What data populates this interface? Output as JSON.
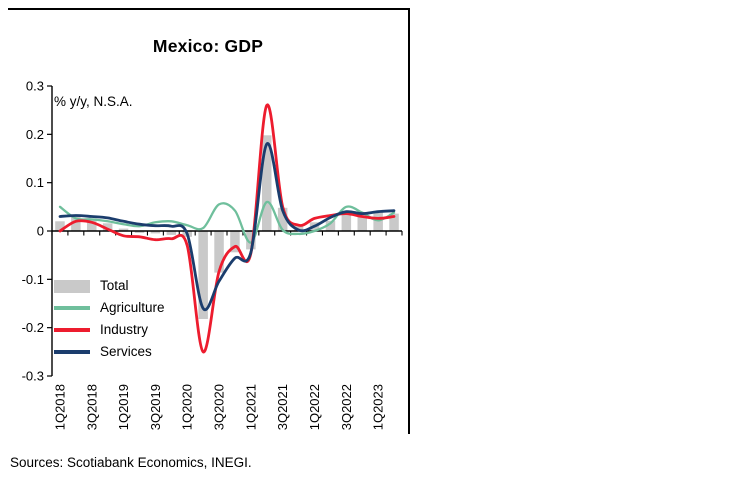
{
  "panel": {
    "title": "Mexico: GDP",
    "unit_label": "% y/y, N.S.A.",
    "source_note": "Sources: Scotiabank Economics, INEGI."
  },
  "colors": {
    "axis": "#000000",
    "total_bar": "#c9c9c9",
    "agriculture": "#6fbf9c",
    "industry": "#ed1c2e",
    "services": "#1b3d6d"
  },
  "chart_data": {
    "type": "bar",
    "subtype": "combo-bar-line",
    "title": "Mexico: GDP",
    "unit": "% y/y, N.S.A.",
    "categories": [
      "1Q2018",
      "2Q2018",
      "3Q2018",
      "4Q2018",
      "1Q2019",
      "2Q2019",
      "3Q2019",
      "4Q2019",
      "1Q2020",
      "2Q2020",
      "3Q2020",
      "4Q2020",
      "1Q2021",
      "2Q2021",
      "3Q2021",
      "4Q2021",
      "1Q2022",
      "2Q2022",
      "3Q2022",
      "4Q2022",
      "1Q2023",
      "2Q2023"
    ],
    "x_tick_labels": [
      "1Q2018",
      "3Q2018",
      "1Q2019",
      "3Q2019",
      "1Q2020",
      "3Q2020",
      "1Q2021",
      "3Q2021",
      "1Q2022",
      "3Q2022",
      "1Q2023"
    ],
    "ylim": [
      -0.3,
      0.3
    ],
    "yticks": [
      "0.3",
      "0.2",
      "0.1",
      "0",
      "-0.1",
      "-0.2",
      "-0.3"
    ],
    "grid": false,
    "legend_position": "inside-left-bottom",
    "series": [
      {
        "name": "Total",
        "type": "bar",
        "color": "#c9c9c9",
        "values": [
          0.02,
          0.03,
          0.026,
          0.016,
          0.005,
          -0.004,
          -0.005,
          -0.008,
          -0.012,
          -0.182,
          -0.086,
          -0.044,
          -0.038,
          0.198,
          0.048,
          0.011,
          0.018,
          0.021,
          0.04,
          0.036,
          0.038,
          0.036
        ]
      },
      {
        "name": "Agriculture",
        "type": "line",
        "color": "#6fbf9c",
        "values": [
          0.05,
          0.026,
          0.024,
          0.02,
          0.014,
          0.01,
          0.018,
          0.02,
          0.012,
          0.006,
          0.055,
          0.042,
          -0.024,
          0.06,
          0.002,
          -0.006,
          0.0,
          0.016,
          0.05,
          0.038,
          0.022,
          0.038
        ]
      },
      {
        "name": "Industry",
        "type": "line",
        "color": "#ed1c2e",
        "values": [
          0.0,
          0.02,
          0.018,
          0.004,
          -0.01,
          -0.012,
          -0.018,
          -0.016,
          -0.03,
          -0.25,
          -0.084,
          -0.032,
          -0.046,
          0.26,
          0.05,
          0.012,
          0.026,
          0.032,
          0.036,
          0.03,
          0.026,
          0.03
        ]
      },
      {
        "name": "Services",
        "type": "line",
        "color": "#1b3d6d",
        "values": [
          0.03,
          0.032,
          0.03,
          0.027,
          0.02,
          0.014,
          0.011,
          0.01,
          -0.006,
          -0.16,
          -0.104,
          -0.056,
          -0.044,
          0.18,
          0.042,
          0.002,
          0.01,
          0.028,
          0.04,
          0.036,
          0.04,
          0.042
        ]
      }
    ]
  }
}
